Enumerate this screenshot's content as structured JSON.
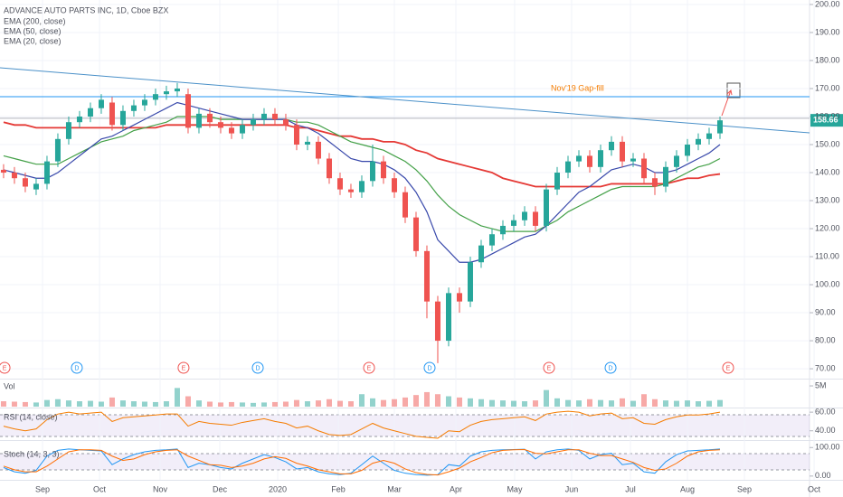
{
  "chart_data": [
    {
      "type": "candlestick",
      "title": "ADVANCE AUTO PARTS INC, 1D, Cboe BZX",
      "xlim": [
        -0.33,
        74.25
      ],
      "xticks": [
        {
          "value": 3.59,
          "label": "Sep"
        },
        {
          "value": 8.84,
          "label": "Oct"
        },
        {
          "value": 14.42,
          "label": "Nov"
        },
        {
          "value": 19.92,
          "label": "Dec"
        },
        {
          "value": 25.25,
          "label": "2020"
        },
        {
          "value": 30.84,
          "label": "Feb"
        },
        {
          "value": 36.0,
          "label": "Mar"
        },
        {
          "value": 41.67,
          "label": "Apr"
        },
        {
          "value": 47.08,
          "label": "May"
        },
        {
          "value": 52.33,
          "label": "Jun"
        },
        {
          "value": 57.75,
          "label": "Jul"
        },
        {
          "value": 63.0,
          "label": "Aug"
        },
        {
          "value": 68.25,
          "label": "Sep"
        },
        {
          "value": 74.67,
          "label": "Oct"
        }
      ],
      "ylim": [
        66.8,
        201.6
      ],
      "yticks": [
        {
          "value": 70,
          "label": "70.00"
        },
        {
          "value": 80,
          "label": "80.00"
        },
        {
          "value": 90,
          "label": "90.00"
        },
        {
          "value": 100,
          "label": "100.00"
        },
        {
          "value": 110,
          "label": "110.00"
        },
        {
          "value": 120,
          "label": "120.00"
        },
        {
          "value": 130,
          "label": "130.00"
        },
        {
          "value": 140,
          "label": "140.00"
        },
        {
          "value": 150,
          "label": "150.00"
        },
        {
          "value": 160,
          "label": "160.00"
        },
        {
          "value": 170,
          "label": "170.00"
        },
        {
          "value": 180,
          "label": "180.00"
        },
        {
          "value": 190,
          "label": "190.00"
        },
        {
          "value": 200,
          "label": "200.00"
        }
      ],
      "grid": true,
      "up_color": "#26a69a",
      "down_color": "#ef5350",
      "open": [
        141,
        140,
        138,
        134,
        136,
        144,
        152,
        158,
        160,
        163,
        165,
        157,
        162,
        164,
        166,
        168,
        169,
        168,
        156,
        161,
        158,
        156,
        154,
        157,
        159,
        161,
        159,
        157,
        150,
        151,
        145,
        138,
        134,
        133,
        137,
        144,
        138,
        133,
        124,
        112,
        94,
        80,
        97,
        94,
        108,
        114,
        118,
        121,
        123,
        126,
        121,
        134,
        140,
        144,
        146,
        142,
        148,
        151,
        144,
        145,
        138,
        135,
        142,
        146,
        150,
        152,
        154
      ],
      "high": [
        143,
        142,
        140,
        138,
        146,
        154,
        160,
        162,
        165,
        168,
        167,
        164,
        166,
        168,
        170,
        171,
        172,
        170,
        163,
        163,
        160,
        158,
        159,
        161,
        163,
        163,
        161,
        159,
        153,
        153,
        147,
        140,
        136,
        139,
        150,
        146,
        140,
        135,
        126,
        114,
        96,
        99,
        99,
        110,
        116,
        120,
        123,
        125,
        128,
        128,
        136,
        142,
        146,
        148,
        148,
        150,
        153,
        153,
        147,
        147,
        140,
        144,
        148,
        152,
        154,
        156,
        160
      ],
      "low": [
        138,
        136,
        133,
        132,
        134,
        142,
        150,
        156,
        158,
        161,
        155,
        155,
        160,
        162,
        164,
        166,
        167,
        154,
        154,
        156,
        154,
        152,
        152,
        155,
        157,
        157,
        155,
        148,
        148,
        143,
        136,
        132,
        131,
        131,
        135,
        136,
        131,
        122,
        110,
        88,
        72,
        78,
        90,
        92,
        106,
        112,
        116,
        119,
        121,
        119,
        119,
        132,
        138,
        142,
        140,
        140,
        146,
        142,
        142,
        136,
        132,
        133,
        140,
        144,
        148,
        150,
        152
      ],
      "close": [
        140,
        138,
        135,
        136,
        144,
        152,
        158,
        160,
        163,
        166,
        157,
        162,
        164,
        166,
        168,
        169,
        170,
        156,
        161,
        158,
        156,
        154,
        157,
        159,
        161,
        159,
        157,
        150,
        151,
        145,
        138,
        134,
        133,
        137,
        144,
        138,
        133,
        124,
        112,
        94,
        80,
        97,
        94,
        108,
        114,
        118,
        121,
        123,
        126,
        121,
        134,
        140,
        144,
        146,
        142,
        148,
        151,
        144,
        145,
        138,
        135,
        142,
        146,
        150,
        152,
        154,
        158.66
      ],
      "series": [
        {
          "name": "EMA (200, close)",
          "color": "#e53935",
          "values": [
            158,
            157,
            157,
            156,
            156,
            156,
            156,
            156,
            156,
            156,
            156,
            156,
            156,
            156,
            156,
            157,
            157,
            157,
            157,
            157,
            157,
            157,
            157,
            157,
            157,
            157,
            157,
            156,
            156,
            155,
            154,
            153,
            153,
            152,
            152,
            151,
            151,
            150,
            148,
            147,
            145,
            144,
            143,
            142,
            141,
            140,
            138,
            137,
            136,
            135,
            135,
            135,
            135,
            135,
            135,
            135,
            136,
            136,
            136,
            136,
            136,
            136,
            137,
            138,
            138,
            139,
            139.5
          ]
        },
        {
          "name": "EMA (50, close)",
          "color": "#43a047",
          "values": [
            146,
            145,
            144,
            143,
            143,
            143,
            145,
            147,
            149,
            151,
            152,
            153,
            155,
            156,
            157,
            158,
            160,
            160,
            160,
            160,
            159,
            159,
            159,
            159,
            159,
            159,
            159,
            158,
            158,
            157,
            155,
            153,
            151,
            150,
            149,
            148,
            146,
            144,
            141,
            137,
            132,
            128,
            125,
            123,
            121,
            120,
            119,
            119,
            119,
            119,
            121,
            123,
            126,
            128,
            130,
            132,
            134,
            135,
            135,
            135,
            135,
            136,
            138,
            140,
            142,
            143,
            145
          ]
        },
        {
          "name": "EMA (20, close)",
          "color": "#3949ab",
          "values": [
            141,
            140,
            139,
            138,
            138,
            140,
            143,
            146,
            149,
            152,
            153,
            155,
            157,
            159,
            161,
            163,
            165,
            164,
            163,
            162,
            161,
            160,
            159,
            159,
            159,
            159,
            159,
            157,
            156,
            154,
            151,
            148,
            145,
            144,
            144,
            143,
            141,
            138,
            133,
            126,
            116,
            112,
            108,
            108,
            109,
            111,
            113,
            115,
            117,
            118,
            121,
            125,
            129,
            133,
            135,
            138,
            141,
            142,
            143,
            142,
            140,
            140,
            141,
            143,
            145,
            147,
            150
          ]
        }
      ],
      "trendline": {
        "color": "#4a90c8",
        "x": [
          -0.33,
          74.25
        ],
        "y": [
          177.4,
          154.2
        ]
      },
      "hlines": [
        {
          "value": 167.1,
          "color": "#2196f3"
        },
        {
          "value": 159.4,
          "color": "#b2b5be"
        }
      ],
      "annotation": "Nov'19 Gap-fill",
      "last_price": 158.66,
      "events": [
        {
          "x": 0.09,
          "label": "E",
          "color": "#ef5350"
        },
        {
          "x": 6.75,
          "label": "D",
          "color": "#2196f3"
        },
        {
          "x": 16.58,
          "label": "E",
          "color": "#ef5350"
        },
        {
          "x": 23.42,
          "label": "D",
          "color": "#2196f3"
        },
        {
          "x": 33.67,
          "label": "E",
          "color": "#ef5350"
        },
        {
          "x": 39.25,
          "label": "D",
          "color": "#2196f3"
        },
        {
          "x": 50.25,
          "label": "E",
          "color": "#ef5350"
        },
        {
          "x": 55.92,
          "label": "D",
          "color": "#2196f3"
        },
        {
          "x": 66.75,
          "label": "E",
          "color": "#ef5350"
        }
      ]
    },
    {
      "type": "bar",
      "title": "Vol",
      "ylim": [
        0,
        6.1
      ],
      "yticks": [
        {
          "value": 5,
          "label": "5M"
        }
      ],
      "values": [
        1.3,
        1.2,
        1.1,
        1.0,
        1.6,
        1.8,
        1.5,
        1.3,
        1.4,
        1.2,
        2.2,
        1.5,
        1.3,
        1.2,
        1.1,
        1.3,
        4.5,
        2.5,
        1.5,
        1.2,
        1.0,
        1.1,
        1.0,
        0.9,
        1.0,
        1.1,
        1.2,
        1.6,
        1.3,
        1.5,
        1.8,
        1.4,
        1.3,
        3.0,
        2.0,
        1.6,
        1.8,
        2.2,
        2.8,
        3.5,
        3.0,
        2.5,
        2.2,
        2.0,
        1.8,
        1.6,
        1.5,
        1.4,
        1.3,
        1.5,
        4.0,
        2.0,
        1.6,
        1.5,
        1.8,
        1.6,
        1.5,
        2.0,
        1.4,
        3.0,
        1.8,
        1.5,
        1.4,
        1.5,
        1.3,
        1.4,
        1.6
      ]
    },
    {
      "type": "line",
      "title": "RSI (14, close)",
      "ylim": [
        31,
        64
      ],
      "yticks": [
        {
          "value": 60,
          "label": "60.00"
        },
        {
          "value": 40,
          "label": "40.00"
        }
      ],
      "series": [
        {
          "color": "#f57c00",
          "values": [
            45,
            42,
            40,
            42,
            52,
            58,
            60,
            58,
            59,
            60,
            50,
            54,
            55,
            56,
            57,
            58,
            58,
            45,
            50,
            48,
            47,
            46,
            49,
            51,
            53,
            50,
            48,
            43,
            45,
            40,
            36,
            35,
            36,
            42,
            48,
            43,
            40,
            37,
            34,
            33,
            32,
            40,
            39,
            46,
            50,
            52,
            53,
            54,
            55,
            51,
            58,
            60,
            61,
            60,
            56,
            58,
            59,
            53,
            54,
            48,
            47,
            52,
            55,
            57,
            57,
            58,
            60
          ]
        }
      ]
    },
    {
      "type": "line",
      "title": "Stoch (14, 3, 3)",
      "ylim": [
        -10,
        123
      ],
      "yticks": [
        {
          "value": 100,
          "label": "100.00"
        },
        {
          "value": 0,
          "label": "0.00"
        }
      ],
      "series": [
        {
          "color": "#2196f3",
          "values": [
            30,
            15,
            10,
            20,
            70,
            90,
            95,
            92,
            90,
            88,
            40,
            60,
            75,
            85,
            90,
            92,
            95,
            30,
            45,
            40,
            30,
            25,
            45,
            60,
            75,
            65,
            50,
            25,
            30,
            15,
            8,
            5,
            10,
            40,
            70,
            45,
            20,
            10,
            5,
            3,
            5,
            40,
            35,
            70,
            85,
            90,
            92,
            93,
            94,
            60,
            85,
            92,
            95,
            90,
            60,
            75,
            80,
            40,
            45,
            15,
            10,
            50,
            75,
            88,
            90,
            92,
            95
          ]
        },
        {
          "color": "#ff6d00",
          "values": [
            35,
            22,
            15,
            15,
            35,
            60,
            85,
            92,
            92,
            90,
            70,
            55,
            60,
            75,
            85,
            90,
            92,
            70,
            55,
            40,
            38,
            30,
            35,
            45,
            60,
            68,
            62,
            45,
            35,
            22,
            15,
            8,
            8,
            20,
            45,
            55,
            45,
            25,
            12,
            6,
            4,
            15,
            28,
            50,
            65,
            82,
            90,
            92,
            93,
            80,
            78,
            85,
            92,
            92,
            80,
            72,
            72,
            60,
            48,
            30,
            20,
            25,
            45,
            70,
            85,
            90,
            92
          ]
        }
      ]
    }
  ]
}
